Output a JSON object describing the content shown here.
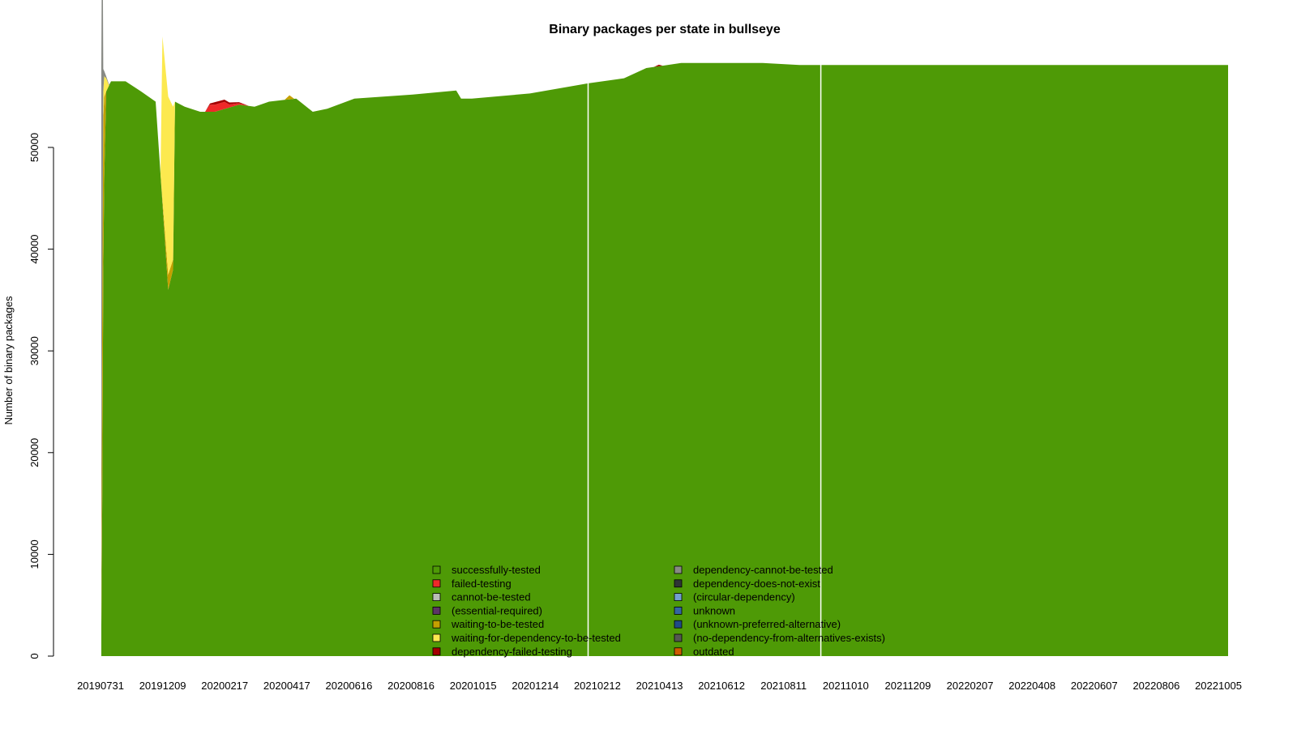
{
  "chart_data": {
    "type": "area",
    "title": "Binary packages per state in bullseye",
    "xlabel": "",
    "ylabel": "Number of binary packages",
    "ylim": [
      0,
      58000
    ],
    "y_ticks": [
      0,
      10000,
      20000,
      30000,
      40000,
      50000
    ],
    "x_tick_labels": [
      "20190731",
      "20191209",
      "20200217",
      "20200417",
      "20200616",
      "20200816",
      "20201015",
      "20201214",
      "20210212",
      "20210413",
      "20210612",
      "20210811",
      "20211010",
      "20211209",
      "20220207",
      "20220408",
      "20220607",
      "20220806",
      "20221005"
    ],
    "x_range": [
      "2019-07-31",
      "2022-10-05"
    ],
    "gaps": [
      "2020-12-14",
      "2021-08-11"
    ],
    "series": [
      {
        "name": "successfully-tested",
        "color": "#4e9a06",
        "points": [
          [
            "2019-07-31",
            3000
          ],
          [
            "2019-08-01",
            16000
          ],
          [
            "2019-08-02",
            38000
          ],
          [
            "2019-08-03",
            47000
          ],
          [
            "2019-08-05",
            55500
          ],
          [
            "2019-08-10",
            56500
          ],
          [
            "2019-08-25",
            56500
          ],
          [
            "2019-09-10",
            55500
          ],
          [
            "2019-09-25",
            54500
          ],
          [
            "2019-10-08",
            36000
          ],
          [
            "2019-10-13",
            38000
          ],
          [
            "2019-10-15",
            54500
          ],
          [
            "2019-10-25",
            54000
          ],
          [
            "2019-11-10",
            53500
          ],
          [
            "2019-11-25",
            53500
          ],
          [
            "2019-12-20",
            54200
          ],
          [
            "2020-01-05",
            54000
          ],
          [
            "2020-01-20",
            54500
          ],
          [
            "2020-02-17",
            54800
          ],
          [
            "2020-03-05",
            53500
          ],
          [
            "2020-03-20",
            53800
          ],
          [
            "2020-04-17",
            54800
          ],
          [
            "2020-06-16",
            55200
          ],
          [
            "2020-07-31",
            55600
          ],
          [
            "2020-08-05",
            54800
          ],
          [
            "2020-08-16",
            54800
          ],
          [
            "2020-10-15",
            55300
          ],
          [
            "2020-12-14",
            56300
          ],
          [
            "2021-01-20",
            56800
          ],
          [
            "2021-02-12",
            57800
          ],
          [
            "2021-03-20",
            58300
          ],
          [
            "2021-06-12",
            58300
          ],
          [
            "2021-07-20",
            58100
          ],
          [
            "2022-10-05",
            58100
          ]
        ]
      },
      {
        "name": "failed-testing",
        "color": "#ef2929",
        "points": [
          [
            "2019-07-31",
            0
          ],
          [
            "2019-11-15",
            0
          ],
          [
            "2019-11-20",
            700
          ],
          [
            "2019-12-05",
            700
          ],
          [
            "2019-12-10",
            300
          ],
          [
            "2019-12-30",
            0
          ],
          [
            "2022-10-05",
            0
          ]
        ]
      },
      {
        "name": "cannot-be-tested",
        "color": "#babdb6",
        "points": [
          [
            "2019-07-31",
            0
          ],
          [
            "2022-10-05",
            0
          ]
        ]
      },
      {
        "name": "(essential-required)",
        "color": "#5c3566",
        "points": [
          [
            "2019-07-31",
            0
          ],
          [
            "2022-10-05",
            0
          ]
        ]
      },
      {
        "name": "waiting-to-be-tested",
        "color": "#c4a000",
        "points": [
          [
            "2019-07-31",
            1500
          ],
          [
            "2019-08-01",
            21000
          ],
          [
            "2019-08-02",
            15000
          ],
          [
            "2019-08-03",
            8000
          ],
          [
            "2019-08-05",
            0
          ],
          [
            "2019-09-30",
            0
          ],
          [
            "2019-10-08",
            1500
          ],
          [
            "2019-10-13",
            1000
          ],
          [
            "2019-10-15",
            0
          ],
          [
            "2020-02-05",
            0
          ],
          [
            "2020-02-10",
            400
          ],
          [
            "2020-02-15",
            0
          ],
          [
            "2022-10-05",
            0
          ]
        ]
      },
      {
        "name": "waiting-for-dependency-to-be-tested",
        "color": "#fce94f",
        "points": [
          [
            "2019-07-31",
            0
          ],
          [
            "2019-08-01",
            0
          ],
          [
            "2019-08-02",
            2500
          ],
          [
            "2019-08-03",
            2000
          ],
          [
            "2019-08-05",
            1300
          ],
          [
            "2019-08-08",
            0
          ],
          [
            "2019-09-30",
            0
          ],
          [
            "2019-10-02",
            16000
          ],
          [
            "2019-10-08",
            17500
          ],
          [
            "2019-10-13",
            15000
          ],
          [
            "2019-10-15",
            0
          ],
          [
            "2022-10-05",
            0
          ]
        ]
      },
      {
        "name": "dependency-failed-testing",
        "color": "#a40000",
        "points": [
          [
            "2019-07-31",
            0
          ],
          [
            "2019-11-15",
            0
          ],
          [
            "2019-11-25",
            250
          ],
          [
            "2019-12-10",
            200
          ],
          [
            "2019-12-30",
            0
          ],
          [
            "2021-02-20",
            0
          ],
          [
            "2021-02-25",
            150
          ],
          [
            "2021-03-01",
            0
          ],
          [
            "2022-10-05",
            0
          ]
        ]
      },
      {
        "name": "dependency-cannot-be-tested",
        "color": "#888a85",
        "points": [
          [
            "2019-07-31",
            53500
          ],
          [
            "2019-08-01",
            40500
          ],
          [
            "2019-08-02",
            2200
          ],
          [
            "2019-08-03",
            500
          ],
          [
            "2019-08-05",
            200
          ],
          [
            "2019-08-10",
            0
          ],
          [
            "2022-10-05",
            0
          ]
        ]
      },
      {
        "name": "dependency-does-not-exist",
        "color": "#2e3436",
        "points": [
          [
            "2019-07-31",
            0
          ],
          [
            "2022-10-05",
            0
          ]
        ]
      },
      {
        "name": "(circular-dependency)",
        "color": "#729fcf",
        "points": [
          [
            "2019-07-31",
            0
          ],
          [
            "2022-10-05",
            0
          ]
        ]
      },
      {
        "name": "unknown",
        "color": "#3465a4",
        "points": [
          [
            "2019-07-31",
            0
          ],
          [
            "2022-10-05",
            0
          ]
        ]
      },
      {
        "name": "(unknown-preferred-alternative)",
        "color": "#204a87",
        "points": [
          [
            "2019-07-31",
            0
          ],
          [
            "2022-10-05",
            0
          ]
        ]
      },
      {
        "name": "(no-dependency-from-alternatives-exists)",
        "color": "#555753",
        "points": [
          [
            "2019-07-31",
            0
          ],
          [
            "2022-10-05",
            0
          ]
        ]
      },
      {
        "name": "outdated",
        "color": "#ce5c00",
        "points": [
          [
            "2019-07-31",
            0
          ],
          [
            "2022-10-05",
            0
          ]
        ]
      }
    ],
    "legend_position": "bottom-center",
    "grid": false
  }
}
